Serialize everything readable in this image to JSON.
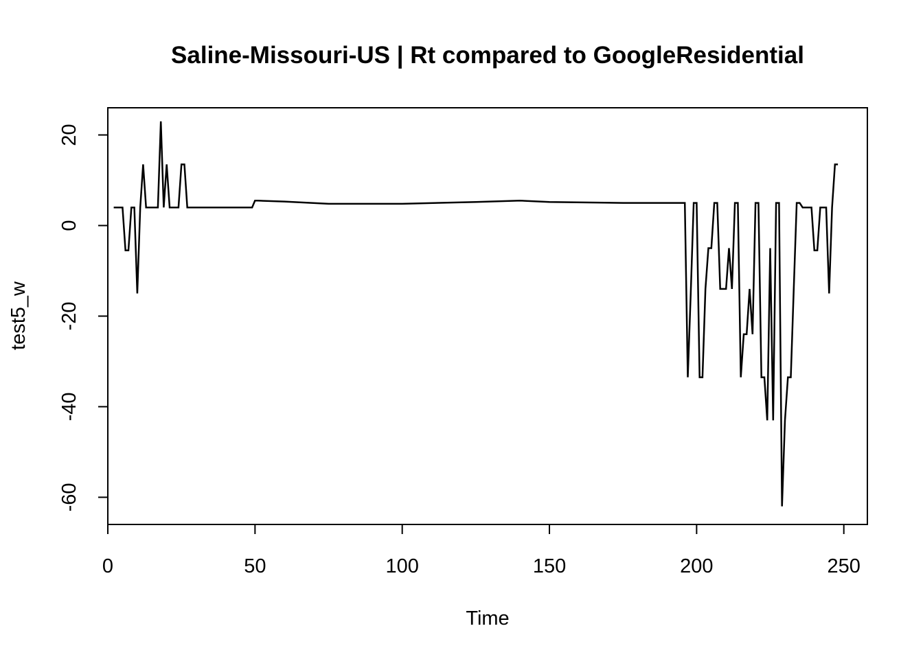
{
  "chart_data": {
    "type": "line",
    "title": "Saline-Missouri-US | Rt compared to GoogleResidential",
    "xlabel": "Time",
    "ylabel": "test5_w",
    "xlim": [
      0,
      258
    ],
    "ylim": [
      -66,
      26
    ],
    "xticks": [
      0,
      50,
      100,
      150,
      200,
      250
    ],
    "yticks": [
      -60,
      -40,
      -20,
      0,
      20
    ],
    "grid": false,
    "series": [
      {
        "x": [
          2,
          5,
          6,
          7,
          8,
          9,
          10,
          11,
          12,
          13,
          14,
          15,
          16,
          17,
          18,
          19,
          20,
          21,
          22,
          23,
          24,
          25,
          26,
          27,
          30,
          40,
          49,
          50,
          51,
          60,
          75,
          100,
          125,
          140,
          150,
          175,
          196,
          197,
          198,
          199,
          200,
          201,
          202,
          203,
          204,
          205,
          206,
          207,
          208,
          209,
          210,
          211,
          212,
          213,
          214,
          215,
          216,
          217,
          218,
          219,
          220,
          221,
          222,
          223,
          224,
          225,
          226,
          227,
          228,
          229,
          230,
          231,
          232,
          233,
          234,
          235,
          236,
          237,
          238,
          239,
          240,
          241,
          242,
          243,
          244,
          245,
          246,
          247,
          248
        ],
        "y": [
          4,
          4,
          -5.5,
          -5.5,
          4,
          4,
          -15,
          4,
          13.5,
          4,
          4,
          4,
          4,
          4,
          23,
          4,
          13.5,
          4,
          4,
          4,
          4,
          13.5,
          13.5,
          4,
          4,
          4,
          4,
          5.5,
          5.5,
          5.3,
          4.8,
          4.8,
          5.2,
          5.5,
          5.2,
          5,
          5,
          -33.5,
          -15,
          5,
          5,
          -33.5,
          -33.5,
          -14,
          -5,
          -5,
          5,
          5,
          -14,
          -14,
          -14,
          -5,
          -14,
          5,
          5,
          -33.5,
          -24,
          -24,
          -14,
          -24,
          5,
          5,
          -33.5,
          -33.5,
          -43,
          -5,
          -43,
          5,
          5,
          -62,
          -43,
          -33.5,
          -33.5,
          -14,
          5,
          5,
          4,
          4,
          4,
          4,
          -5.5,
          -5.5,
          4,
          4,
          4,
          -15,
          4,
          13.5,
          13.5
        ]
      }
    ]
  }
}
